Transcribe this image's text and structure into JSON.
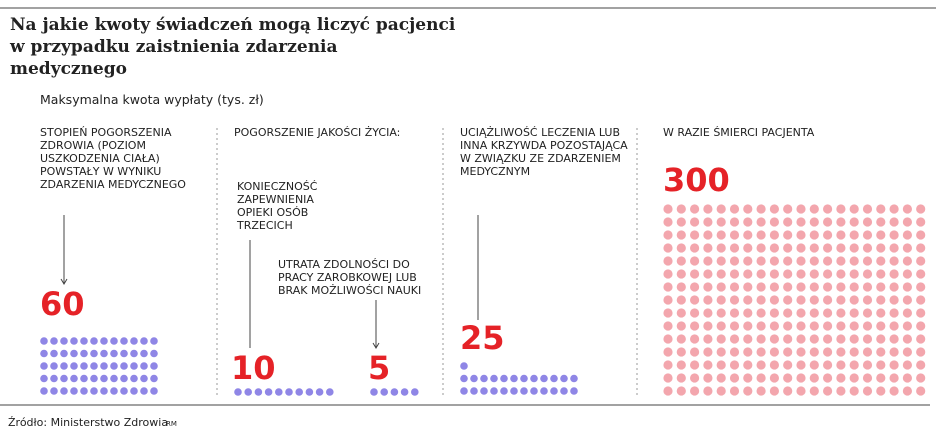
{
  "chart_data": {
    "type": "pictogram",
    "title": "Na jakie kwoty świadczeń mogą liczyć pacjenci w przypadku zaistnienia zdarzenia medycznego",
    "subtitle": "Maksymalna kwota wypłaty (tys. zł)",
    "source": "Źródło: Ministerstwo Zdrowia",
    "credit": "RM",
    "number_color": "#e52227",
    "panels": [
      {
        "title": "STOPIEŃ POGORSZENIA ZDROWIA (POZIOM USZKODZENIA CIAŁA) POWSTAŁY W WYNIKU ZDARZENIA MEDYCZNEGO",
        "items": [
          {
            "value": 60,
            "color": "#8f86e6"
          }
        ]
      },
      {
        "title": "POGORSZENIE JAKOŚCI ŻYCIA:",
        "items": [
          {
            "label": "KONIECZNOŚĆ ZAPEWNIENIA OPIEKI OSÓB TRZECICH",
            "value": 10,
            "color": "#8f86e6"
          },
          {
            "label": "UTRATA ZDOLNOŚCI DO PRACY ZAROBKOWEJ LUB BRAK MOŻLIWOŚCI NAUKI",
            "value": 5,
            "color": "#8f86e6"
          }
        ]
      },
      {
        "title": "UCIĄŻLIWOŚĆ LECZENIA LUB INNA KRZYWDA POZOSTAJĄCA W ZWIĄZKU ZE ZDARZENIEM MEDYCZNYM",
        "items": [
          {
            "value": 25,
            "color": "#8f86e6"
          }
        ]
      },
      {
        "title": "W RAZIE ŚMIERCI PACJENTA",
        "items": [
          {
            "value": 300,
            "color": "#f3a6ad"
          }
        ]
      }
    ]
  }
}
